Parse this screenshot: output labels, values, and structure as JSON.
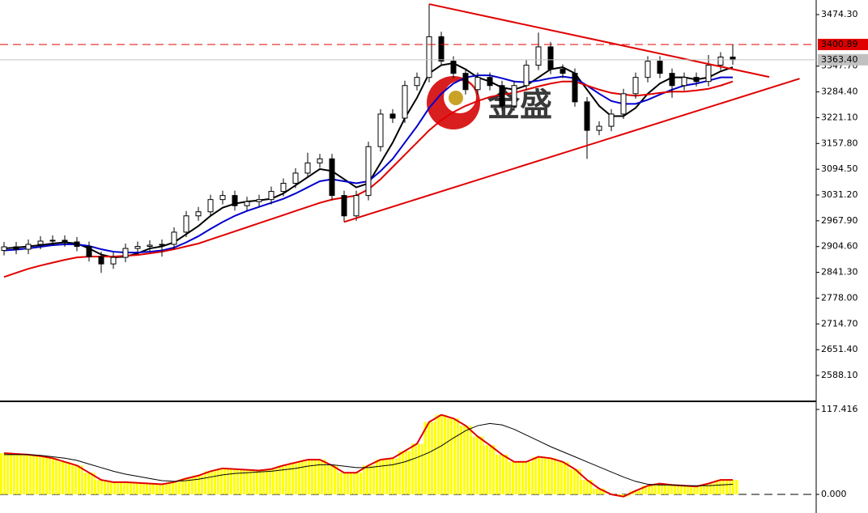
{
  "chart_data": [
    {
      "type": "candlestick",
      "open": [
        2895,
        2904,
        2898,
        2910,
        2918,
        2920,
        2916,
        2905,
        2880,
        2862,
        2878,
        2900,
        2905,
        2908,
        2910,
        2940,
        2980,
        2990,
        3020,
        3030,
        3005,
        3015,
        3020,
        3040,
        3060,
        3085,
        3110,
        3120,
        3030,
        2980,
        3030,
        3150,
        3230,
        3220,
        3300,
        3320,
        3420,
        3360,
        3330,
        3290,
        3320,
        3300,
        3250,
        3300,
        3350,
        3395,
        3340,
        3330,
        3260,
        3190,
        3200,
        3230,
        3280,
        3320,
        3360,
        3330,
        3300,
        3320,
        3310,
        3350,
        3370
      ],
      "high": [
        2916,
        2916,
        2922,
        2930,
        2932,
        2932,
        2928,
        2917,
        2892,
        2890,
        2912,
        2917,
        2920,
        2922,
        2952,
        2992,
        3002,
        3032,
        3042,
        3042,
        3027,
        3032,
        3052,
        3072,
        3097,
        3135,
        3132,
        3132,
        3042,
        3042,
        3162,
        3242,
        3242,
        3312,
        3332,
        3500,
        3432,
        3372,
        3342,
        3332,
        3332,
        3312,
        3312,
        3362,
        3430,
        3407,
        3352,
        3342,
        3272,
        3212,
        3242,
        3292,
        3332,
        3372,
        3372,
        3342,
        3332,
        3332,
        3375,
        3382,
        3400
      ],
      "low": [
        2883,
        2886,
        2886,
        2898,
        2906,
        2904,
        2893,
        2868,
        2840,
        2850,
        2866,
        2888,
        2893,
        2880,
        2898,
        2928,
        2968,
        2978,
        3008,
        2993,
        2993,
        3003,
        3008,
        3028,
        3048,
        3073,
        3098,
        3018,
        2965,
        2968,
        3018,
        3138,
        3208,
        3208,
        3288,
        3308,
        3348,
        3318,
        3278,
        3278,
        3288,
        3238,
        3238,
        3288,
        3338,
        3328,
        3318,
        3248,
        3120,
        3178,
        3188,
        3218,
        3268,
        3308,
        3318,
        3270,
        3288,
        3298,
        3298,
        3338,
        3351
      ],
      "close": [
        2904,
        2898,
        2910,
        2918,
        2920,
        2916,
        2905,
        2880,
        2862,
        2878,
        2900,
        2905,
        2908,
        2910,
        2940,
        2980,
        2990,
        3020,
        3030,
        3005,
        3015,
        3020,
        3040,
        3060,
        3085,
        3110,
        3120,
        3030,
        2980,
        3030,
        3150,
        3230,
        3220,
        3300,
        3320,
        3420,
        3360,
        3330,
        3290,
        3320,
        3300,
        3250,
        3300,
        3350,
        3395,
        3340,
        3330,
        3260,
        3190,
        3200,
        3230,
        3280,
        3320,
        3360,
        3330,
        3300,
        3320,
        3310,
        3350,
        3370,
        3363.4
      ],
      "up_color": "#ffffff",
      "down_color": "#000000",
      "outline_color": "#000000",
      "moving_averages": [
        {
          "color": "#000000",
          "values": [
            2900,
            2902,
            2905,
            2908,
            2912,
            2915,
            2912,
            2900,
            2885,
            2878,
            2880,
            2888,
            2900,
            2905,
            2915,
            2935,
            2955,
            2980,
            3000,
            3010,
            3015,
            3018,
            3022,
            3035,
            3055,
            3075,
            3095,
            3090,
            3070,
            3050,
            3060,
            3110,
            3160,
            3220,
            3270,
            3330,
            3350,
            3355,
            3340,
            3320,
            3310,
            3295,
            3290,
            3300,
            3320,
            3340,
            3345,
            3330,
            3290,
            3250,
            3225,
            3225,
            3245,
            3280,
            3305,
            3320,
            3320,
            3315,
            3320,
            3335,
            3345
          ]
        },
        {
          "color": "#0000cc",
          "values": [
            2895,
            2897,
            2900,
            2904,
            2908,
            2910,
            2910,
            2906,
            2898,
            2892,
            2890,
            2890,
            2892,
            2895,
            2902,
            2915,
            2930,
            2948,
            2965,
            2980,
            2992,
            3002,
            3012,
            3022,
            3035,
            3050,
            3065,
            3070,
            3065,
            3060,
            3065,
            3090,
            3120,
            3160,
            3200,
            3245,
            3280,
            3305,
            3320,
            3325,
            3325,
            3318,
            3310,
            3308,
            3312,
            3318,
            3322,
            3318,
            3300,
            3280,
            3262,
            3255,
            3255,
            3265,
            3278,
            3290,
            3300,
            3305,
            3312,
            3320,
            3320
          ]
        },
        {
          "color": "#e00000",
          "values": [
            2830,
            2840,
            2850,
            2858,
            2865,
            2872,
            2878,
            2880,
            2880,
            2880,
            2882,
            2884,
            2888,
            2892,
            2898,
            2905,
            2912,
            2922,
            2932,
            2942,
            2952,
            2962,
            2972,
            2982,
            2992,
            3002,
            3012,
            3020,
            3025,
            3030,
            3045,
            3070,
            3100,
            3130,
            3160,
            3190,
            3215,
            3235,
            3250,
            3262,
            3272,
            3278,
            3282,
            3290,
            3298,
            3305,
            3310,
            3310,
            3300,
            3290,
            3282,
            3278,
            3275,
            3278,
            3282,
            3285,
            3285,
            3288,
            3292,
            3300,
            3310
          ]
        }
      ],
      "trendlines": [
        {
          "x": [
            35,
            63
          ],
          "y": [
            3500,
            3321
          ],
          "color": "#e00000"
        },
        {
          "x": [
            28,
            65.5
          ],
          "y": [
            2965,
            3317
          ],
          "color": "#e00000"
        }
      ],
      "levels": [
        {
          "value": 3400.89,
          "color": "#e00000",
          "style": "dashed"
        },
        {
          "value": 3363.4,
          "label": "3363.40",
          "color": "#c0c0c0",
          "style": "solid"
        }
      ],
      "watermark": "金盛",
      "ylim": [
        2526.5,
        3510.1
      ],
      "yticks": [
        {
          "value": 3474.3,
          "label": "3474.30"
        },
        {
          "value": 3347.7,
          "label": "3347.70"
        },
        {
          "value": 3284.4,
          "label": "3284.40"
        },
        {
          "value": 3221.1,
          "label": "3221.10"
        },
        {
          "value": 3157.8,
          "label": "3157.80"
        },
        {
          "value": 3094.5,
          "label": "3094.50"
        },
        {
          "value": 3031.2,
          "label": "3031.20"
        },
        {
          "value": 2967.9,
          "label": "2967.90"
        },
        {
          "value": 2904.6,
          "label": "2904.60"
        },
        {
          "value": 2841.3,
          "label": "2841.30"
        },
        {
          "value": 2778,
          "label": "2778.00"
        },
        {
          "value": 2714.7,
          "label": "2714.70"
        },
        {
          "value": 2651.4,
          "label": "2651.40"
        },
        {
          "value": 2588.1,
          "label": "2588.10"
        }
      ]
    },
    {
      "type": "histogram",
      "values": [
        57,
        56,
        55,
        53,
        50,
        45,
        40,
        30,
        20,
        17,
        17,
        16,
        15,
        14,
        17,
        22,
        26,
        32,
        36,
        35,
        34,
        33,
        35,
        40,
        44,
        48,
        48,
        40,
        30,
        30,
        40,
        48,
        50,
        60,
        70,
        100,
        110,
        105,
        95,
        80,
        68,
        55,
        45,
        45,
        52,
        50,
        45,
        35,
        20,
        8,
        0,
        -3,
        5,
        12,
        15,
        13,
        12,
        11,
        15,
        20,
        20
      ],
      "color": "#ffff00",
      "line_color": "#e00000",
      "signal": {
        "color": "#000000",
        "values": [
          55,
          55,
          55,
          54,
          52,
          50,
          47,
          42,
          37,
          32,
          28,
          25,
          22,
          19,
          18,
          19,
          21,
          24,
          27,
          29,
          30,
          31,
          32,
          34,
          36,
          39,
          41,
          41,
          39,
          37,
          37,
          39,
          41,
          45,
          51,
          58,
          67,
          78,
          88,
          95,
          98,
          96,
          90,
          82,
          74,
          66,
          59,
          52,
          45,
          38,
          31,
          24,
          18,
          14,
          13,
          13,
          12,
          12,
          12,
          13,
          14
        ]
      },
      "ylim": [
        -25.7,
        127.5
      ],
      "yticks": [
        {
          "value": 117.416,
          "label": "117.416"
        },
        {
          "value": 0,
          "label": "0.000"
        }
      ]
    }
  ]
}
